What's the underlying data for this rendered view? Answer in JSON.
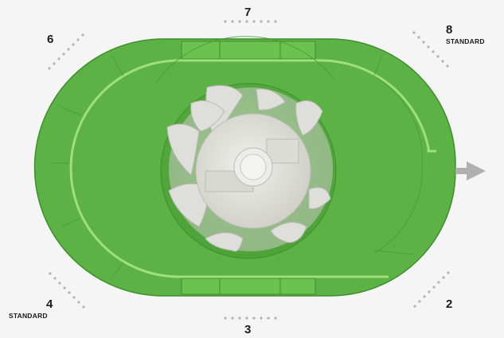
{
  "positions": [
    {
      "id": "7",
      "number": "7"
    },
    {
      "id": "6",
      "number": "6"
    },
    {
      "id": "8",
      "number": "8",
      "tag": "STANDARD"
    },
    {
      "id": "4",
      "number": "4",
      "tag": "STANDARD"
    },
    {
      "id": "2",
      "number": "2"
    },
    {
      "id": "3",
      "number": "3"
    }
  ],
  "colors": {
    "housing_green": "#5cb244",
    "housing_dark": "#3f8f2e",
    "housing_light": "#8ed46a",
    "impeller": "#e2e2dc",
    "background": "#f5f5f5",
    "dots": "#b3b3b3",
    "arrow": "#b0b0b0"
  },
  "icons": {
    "outlet": "arrow-right-icon"
  }
}
